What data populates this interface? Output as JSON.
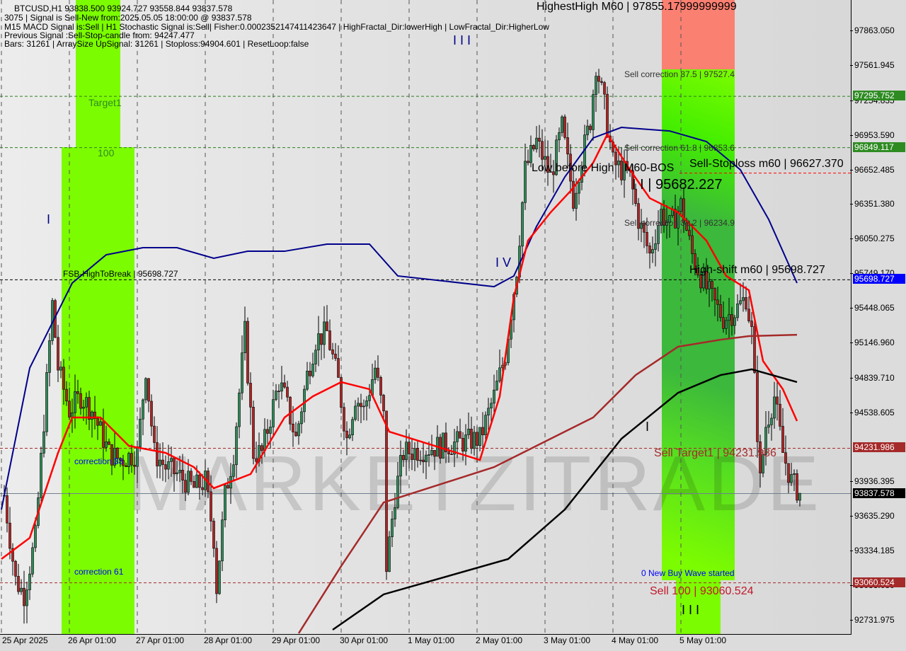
{
  "header": {
    "symbol_line": "BTCUSD,H1  93838.500 93924.727 93558.844 93837.578",
    "signal_line": "3075 | Signal is Sell-New from:2025.05.05 18:00:00 @ 93837.578",
    "macd_line": "M15 MACD Signal is:Sell | H1 Stochastic Signal is:Sell| Fisher:0.000235214741142364​7 | HighFractal_Dir:lowerHigh | LowFractal_Dir:HigherLow",
    "previous_line": "Previous Signal :Sell-Stop-candle from: 94247.477",
    "bars_line": "Bars: 31261 | ArraySize UpSignal: 31261 | Stoploss:94904.601 | ResetLoop:false"
  },
  "labels": {
    "highest_high": "HighestHigh    M60 | 97855.17999999999",
    "sell_corr_875": "Sell correction 87.5 | 97527.4",
    "sell_corr_618": "Sell correction 61.8 | 96853.6",
    "sell_stoploss": "Sell-Stoploss m60 | 96627.370",
    "low_before_high": "Low before High",
    "m60_bos": "M60-BOS",
    "bos_value": "I I | 95682.227",
    "sell_corr_382": "Sell correction 38.2 | 96234.9",
    "high_shift": "High-shift m60 | 95698.727",
    "fsb": "FSB-HighToBreak | 95698.727",
    "sell_target": "Sell Target1 | 94231.986",
    "sell_100": "Sell 100 | 93060.524",
    "new_buy_wave": "0 New Buy Wave started",
    "target1": "Target1",
    "level_100": "100",
    "correction_38": "correction 38",
    "correction_61": "correction 61",
    "wave_iii_top": "I I I",
    "wave_iii_bottom": "I I I",
    "wave_iv": "I V",
    "wave_i": "I",
    "wave_i2": "I",
    "watermark_a": "MARKETZI",
    "watermark_b": "TRADE"
  },
  "chart_data": {
    "type": "candlestick",
    "title": "BTCUSD,H1",
    "ylim": [
      92731.975,
      97863.05
    ],
    "y_ticks": [
      "97863.050",
      "97561.945",
      "97254.835",
      "96953.590",
      "96652.485",
      "96351.380",
      "96050.275",
      "95749.170",
      "95448.065",
      "95146.960",
      "94839.710",
      "94538.605",
      "93936.395",
      "93635.290",
      "93334.185",
      "93033.080",
      "92731.975"
    ],
    "x_ticks": [
      "25 Apr 2025",
      "26 Apr 01:00",
      "27 Apr 01:00",
      "28 Apr 01:00",
      "29 Apr 01:00",
      "30 Apr 01:00",
      "1 May 01:00",
      "2 May 01:00",
      "3 May 01:00",
      "4 May 01:00",
      "5 May 01:00"
    ],
    "price_badges": [
      {
        "value": "97295.752",
        "color": "#2e8b22"
      },
      {
        "value": "96849.117",
        "color": "#2e8b22"
      },
      {
        "value": "95698.727",
        "color": "#0000ff"
      },
      {
        "value": "94231.986",
        "color": "#a52a2a"
      },
      {
        "value": "93837.578",
        "color": "#000000"
      },
      {
        "value": "93060.524",
        "color": "#a52a2a"
      }
    ],
    "levels": [
      {
        "price": 97295.752,
        "color": "#2e7d22",
        "style": "dashed"
      },
      {
        "price": 96849.117,
        "color": "#2e7d22",
        "style": "dashed"
      },
      {
        "price": 95698.727,
        "color": "#000000",
        "style": "dashed"
      },
      {
        "price": 94231.986,
        "color": "#a52a2a",
        "style": "dashed"
      },
      {
        "price": 93060.524,
        "color": "#a52a2a",
        "style": "dashed"
      },
      {
        "price": 93837.578,
        "color": "#708090",
        "style": "solid"
      },
      {
        "price": 96627.37,
        "color": "#ff0000",
        "style": "dashed"
      }
    ],
    "close_path": [
      [
        "04-25 01",
        93822
      ],
      [
        "04-25 05",
        93083
      ],
      [
        "04-25 08",
        92960
      ],
      [
        "04-25 12",
        93452
      ],
      [
        "04-25 18",
        95485
      ],
      [
        "04-25 20",
        94931
      ],
      [
        "04-26 00",
        94561
      ],
      [
        "04-26 04",
        94684
      ],
      [
        "04-26 08",
        94561
      ],
      [
        "04-26 14",
        94192
      ],
      [
        "04-26 18",
        94130
      ],
      [
        "04-27 00",
        94192
      ],
      [
        "04-27 03",
        94931
      ],
      [
        "04-27 06",
        94192
      ],
      [
        "04-27 10",
        94068
      ],
      [
        "04-27 14",
        94007
      ],
      [
        "04-27 20",
        93884
      ],
      [
        "04-28 00",
        93945
      ],
      [
        "04-28 03",
        93452
      ],
      [
        "04-28 04",
        93021
      ],
      [
        "04-28 07",
        93822
      ],
      [
        "04-28 10",
        94192
      ],
      [
        "04-28 14",
        95239
      ],
      [
        "04-28 17",
        94192
      ],
      [
        "04-28 20",
        94192
      ],
      [
        "04-29 02",
        94808
      ],
      [
        "04-29 04",
        94684
      ],
      [
        "04-29 08",
        94315
      ],
      [
        "04-29 12",
        94869
      ],
      [
        "04-29 15",
        95177
      ],
      [
        "04-29 19",
        95239
      ],
      [
        "04-29 23",
        94808
      ],
      [
        "04-30 02",
        94315
      ],
      [
        "04-30 05",
        94684
      ],
      [
        "04-30 08",
        94561
      ],
      [
        "04-30 12",
        94931
      ],
      [
        "04-30 15",
        94500
      ],
      [
        "04-30 16",
        93206
      ],
      [
        "04-30 19",
        93822
      ],
      [
        "04-30 22",
        94192
      ],
      [
        "05-01 01",
        94315
      ],
      [
        "05-01 06",
        94684
      ],
      [
        "05-01 10",
        95054
      ],
      [
        "05-01 14",
        95793
      ],
      [
        "05-01 17",
        96656
      ],
      [
        "05-01 21",
        96902
      ],
      [
        "05-02 02",
        96594
      ],
      [
        "05-02 06",
        97025
      ],
      [
        "05-02 10",
        96409
      ],
      [
        "05-02 12",
        96656
      ],
      [
        "05-02 16",
        97087
      ],
      [
        "05-02 18",
        97580
      ],
      [
        "05-02 21",
        97210
      ],
      [
        "05-03 00",
        96717
      ],
      [
        "05-03 06",
        96594
      ],
      [
        "05-03 09",
        96224
      ],
      [
        "05-03 13",
        95916
      ],
      [
        "05-03 17",
        96286
      ],
      [
        "05-03 20",
        96163
      ],
      [
        "05-04 00",
        96348
      ],
      [
        "05-04 04",
        95916
      ],
      [
        "05-04 08",
        95670
      ],
      [
        "05-04 12",
        95485
      ],
      [
        "05-04 15",
        95362
      ],
      [
        "05-04 19",
        95424
      ],
      [
        "05-04 23",
        95547
      ],
      [
        "05-05 01",
        95239
      ],
      [
        "05-05 04",
        93945
      ],
      [
        "05-05 06",
        94431
      ],
      [
        "05-05 09",
        94684
      ],
      [
        "05-05 12",
        94192
      ],
      [
        "05-05 15",
        93945
      ],
      [
        "05-05 18",
        93838
      ]
    ],
    "series": [
      {
        "color": "#00008b",
        "points": [
          [
            "04-25 00",
            93699
          ],
          [
            "04-25 10",
            94931
          ],
          [
            "04-26 01",
            95670
          ],
          [
            "04-26 13",
            95916
          ],
          [
            "04-27 02",
            95978
          ],
          [
            "04-27 14",
            95978
          ],
          [
            "04-28 03",
            95886
          ],
          [
            "04-28 15",
            95947
          ],
          [
            "04-29 04",
            95947
          ],
          [
            "04-29 19",
            96009
          ],
          [
            "04-30 10",
            96009
          ],
          [
            "04-30 20",
            95732
          ],
          [
            "05-01 06",
            95639
          ],
          [
            "05-01 13",
            95732
          ],
          [
            "05-01 21",
            96163
          ],
          [
            "05-02 07",
            96594
          ],
          [
            "05-02 17",
            96933
          ],
          [
            "05-03 03",
            97025
          ],
          [
            "05-03 20",
            96994
          ],
          [
            "05-04 09",
            96902
          ],
          [
            "05-04 21",
            96656
          ],
          [
            "05-05 07",
            96224
          ],
          [
            "05-05 17",
            95670
          ]
        ]
      },
      {
        "color": "#ff0000",
        "points": [
          [
            "04-25 00",
            93268
          ],
          [
            "04-25 10",
            93452
          ],
          [
            "04-25 20",
            94192
          ],
          [
            "04-26 01",
            94500
          ],
          [
            "04-26 11",
            94500
          ],
          [
            "04-26 21",
            94253
          ],
          [
            "04-27 10",
            94192
          ],
          [
            "04-27 20",
            94068
          ],
          [
            "04-28 03",
            93884
          ],
          [
            "04-28 16",
            94007
          ],
          [
            "04-29 04",
            94500
          ],
          [
            "04-29 14",
            94684
          ],
          [
            "04-30 00",
            94808
          ],
          [
            "04-30 10",
            94746
          ],
          [
            "04-30 17",
            94376
          ],
          [
            "05-01 01",
            94130
          ],
          [
            "05-01 08",
            94684
          ],
          [
            "05-01 13",
            95547
          ],
          [
            "05-01 18",
            96040
          ],
          [
            "05-02 02",
            96286
          ],
          [
            "05-02 09",
            96471
          ],
          [
            "05-02 17",
            96717
          ],
          [
            "05-02 22",
            96964
          ],
          [
            "05-03 06",
            96656
          ],
          [
            "05-03 13",
            96409
          ],
          [
            "05-03 23",
            96286
          ],
          [
            "05-04 09",
            96040
          ],
          [
            "05-04 16",
            95732
          ],
          [
            "05-05 00",
            95608
          ],
          [
            "05-05 05",
            94992
          ],
          [
            "05-05 12",
            94746
          ],
          [
            "05-05 17",
            94469
          ]
        ]
      },
      {
        "color": "#a52a2a",
        "points": [
          [
            "04-29 09",
            92621
          ],
          [
            "04-30 00",
            93206
          ],
          [
            "04-30 15",
            93760
          ],
          [
            "05-01 06",
            94068
          ],
          [
            "05-02 02",
            94315
          ],
          [
            "05-02 17",
            94500
          ],
          [
            "05-03 08",
            94869
          ],
          [
            "05-03 23",
            95116
          ],
          [
            "05-04 14",
            95177
          ],
          [
            "05-05 00",
            95208
          ],
          [
            "05-05 17",
            95220
          ]
        ]
      },
      {
        "color": "#000000",
        "points": [
          [
            "04-29 21",
            92652
          ],
          [
            "04-30 15",
            92960
          ],
          [
            "05-01 11",
            93268
          ],
          [
            "05-02 07",
            93699
          ],
          [
            "05-03 03",
            94315
          ],
          [
            "05-03 23",
            94715
          ],
          [
            "05-04 14",
            94869
          ],
          [
            "05-05 01",
            94919
          ],
          [
            "05-05 17",
            94808
          ]
        ]
      }
    ]
  },
  "colors": {
    "zone_green": "#7cfc00",
    "zone_dark_green": "#3cb83c",
    "zone_red": "#fa8072",
    "bull": "#2e8b57",
    "bear": "#b22222"
  }
}
